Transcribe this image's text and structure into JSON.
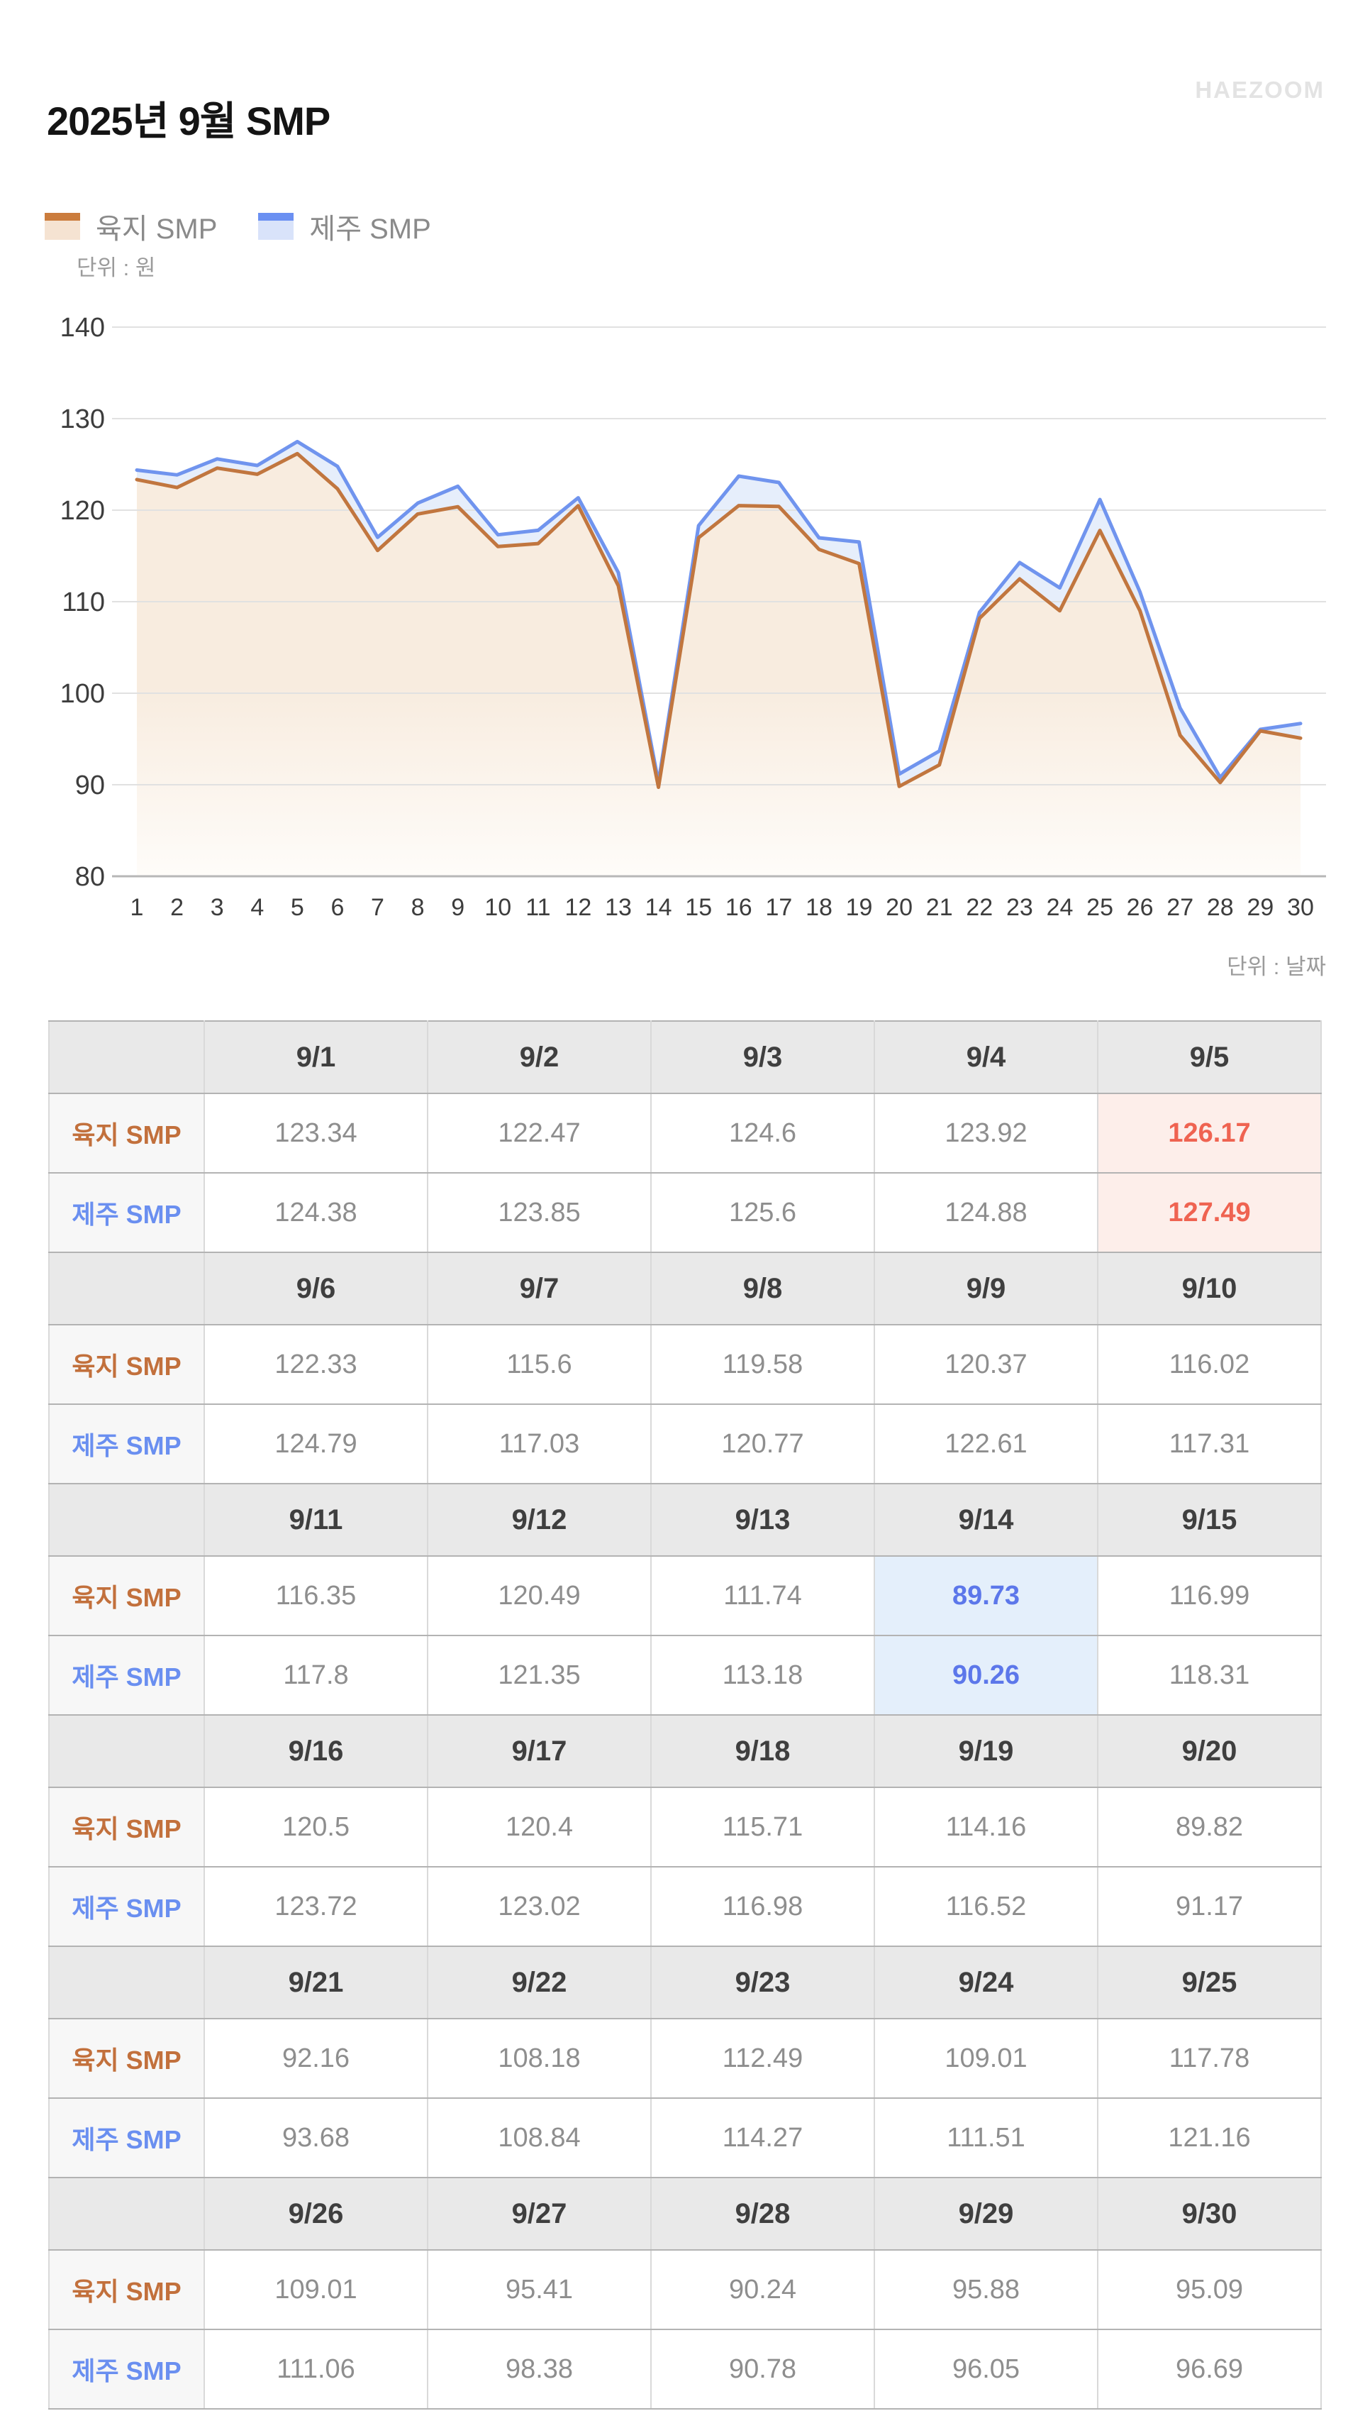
{
  "title": "2025년 9월 SMP",
  "brand": "HAEZOOM",
  "unit_value_label": "단위 : 원",
  "unit_date_label": "단위 : 날짜",
  "legend": [
    {
      "label": "육지 SMP",
      "line_color": "#cb7c3d",
      "fill_color": "#f5e3d2"
    },
    {
      "label": "제주 SMP",
      "line_color": "#6b90f2",
      "fill_color": "#d9e3fa"
    }
  ],
  "chart_data": {
    "type": "area",
    "title": "2025년 9월 SMP",
    "xlabel": "날짜",
    "ylabel": "원",
    "days": [
      1,
      2,
      3,
      4,
      5,
      6,
      7,
      8,
      9,
      10,
      11,
      12,
      13,
      14,
      15,
      16,
      17,
      18,
      19,
      20,
      21,
      22,
      23,
      24,
      25,
      26,
      27,
      28,
      29,
      30
    ],
    "ylim": [
      80,
      140
    ],
    "yticks": [
      80,
      90,
      100,
      110,
      120,
      130,
      140
    ],
    "grid": true,
    "legend_position": "top-left",
    "series": [
      {
        "name": "육지 SMP",
        "line_color": "#c1763f",
        "fill_gradient": [
          "#f8ecdf",
          "#fefcf9"
        ],
        "values": [
          123.34,
          122.47,
          124.6,
          123.92,
          126.17,
          122.33,
          115.6,
          119.58,
          120.37,
          116.02,
          116.35,
          120.49,
          111.74,
          89.73,
          116.99,
          120.5,
          120.4,
          115.71,
          114.16,
          89.82,
          92.16,
          108.18,
          112.49,
          109.01,
          117.78,
          109.01,
          95.41,
          90.24,
          95.88,
          95.09
        ]
      },
      {
        "name": "제주 SMP",
        "line_color": "#7094ee",
        "fill_color": "#e6eefb",
        "values": [
          124.38,
          123.85,
          125.6,
          124.88,
          127.49,
          124.79,
          117.03,
          120.77,
          122.61,
          117.31,
          117.8,
          121.35,
          113.18,
          90.26,
          118.31,
          123.72,
          123.02,
          116.98,
          116.52,
          91.17,
          93.68,
          108.84,
          114.27,
          111.51,
          121.16,
          111.06,
          98.38,
          90.78,
          96.05,
          96.69
        ]
      }
    ]
  },
  "table": {
    "row_labels": [
      "육지 SMP",
      "제주 SMP"
    ],
    "dates": [
      "9/1",
      "9/2",
      "9/3",
      "9/4",
      "9/5",
      "9/6",
      "9/7",
      "9/8",
      "9/9",
      "9/10",
      "9/11",
      "9/12",
      "9/13",
      "9/14",
      "9/15",
      "9/16",
      "9/17",
      "9/18",
      "9/19",
      "9/20",
      "9/21",
      "9/22",
      "9/23",
      "9/24",
      "9/25",
      "9/26",
      "9/27",
      "9/28",
      "9/29",
      "9/30"
    ],
    "yukji": [
      123.34,
      122.47,
      124.6,
      123.92,
      126.17,
      122.33,
      115.6,
      119.58,
      120.37,
      116.02,
      116.35,
      120.49,
      111.74,
      89.73,
      116.99,
      120.5,
      120.4,
      115.71,
      114.16,
      89.82,
      92.16,
      108.18,
      112.49,
      109.01,
      117.78,
      109.01,
      95.41,
      90.24,
      95.88,
      95.09
    ],
    "jeju": [
      124.38,
      123.85,
      125.6,
      124.88,
      127.49,
      124.79,
      117.03,
      120.77,
      122.61,
      117.31,
      117.8,
      121.35,
      113.18,
      90.26,
      118.31,
      123.72,
      123.02,
      116.98,
      116.52,
      91.17,
      93.68,
      108.84,
      114.27,
      111.51,
      121.16,
      111.06,
      98.38,
      90.78,
      96.05,
      96.69
    ],
    "highlight": {
      "max_date": "9/5",
      "max_index": 4,
      "max_color": "#ef6351",
      "max_bg": "#fdeeea",
      "min_date": "9/14",
      "min_index": 13,
      "min_color": "#5c77ea",
      "min_bg": "#e4effb"
    }
  }
}
